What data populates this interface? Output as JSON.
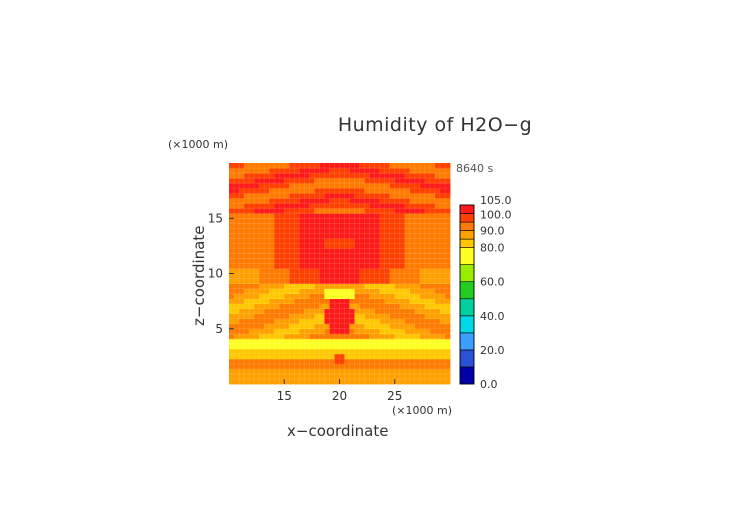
{
  "chart_data": {
    "type": "heatmap",
    "title": "Humidity of H2O−g",
    "xlabel": "x−coordinate",
    "ylabel": "z−coordinate",
    "x_unit": "(×1000 m)",
    "y_unit": "(×1000 m)",
    "time_label": "8640 s",
    "xlim": [
      10,
      30
    ],
    "ylim": [
      0,
      20
    ],
    "x_ticks": [
      15,
      20,
      25
    ],
    "y_ticks": [
      5,
      10,
      15
    ],
    "colorbar": {
      "ticks": [
        "0.0",
        "20.0",
        "40.0",
        "60.0",
        "80.0",
        "90.0",
        "100.0",
        "105.0"
      ],
      "levels": [
        0,
        10,
        20,
        30,
        40,
        50,
        60,
        70,
        80,
        85,
        90,
        95,
        100,
        105
      ],
      "colors": [
        "#0000aa",
        "#2a4fd8",
        "#3a9fff",
        "#00d8e8",
        "#00d0a0",
        "#22cc22",
        "#99ee00",
        "#ffff22",
        "#ffc800",
        "#ffa000",
        "#ff7a00",
        "#ff4000",
        "#ff1a1a",
        "#ffb6c1"
      ]
    },
    "field_description": [
      {
        "z_range": [
          0,
          1
        ],
        "level": "85-90"
      },
      {
        "z_range": [
          1,
          3
        ],
        "level": "80-85"
      },
      {
        "z_range": [
          3,
          4
        ],
        "level": "70-80"
      },
      {
        "z_range": [
          4,
          9
        ],
        "level": "85-95"
      },
      {
        "z_range": [
          9,
          15
        ],
        "level": "100-105"
      },
      {
        "z_range": [
          15,
          20
        ],
        "level": "95-100"
      }
    ]
  }
}
